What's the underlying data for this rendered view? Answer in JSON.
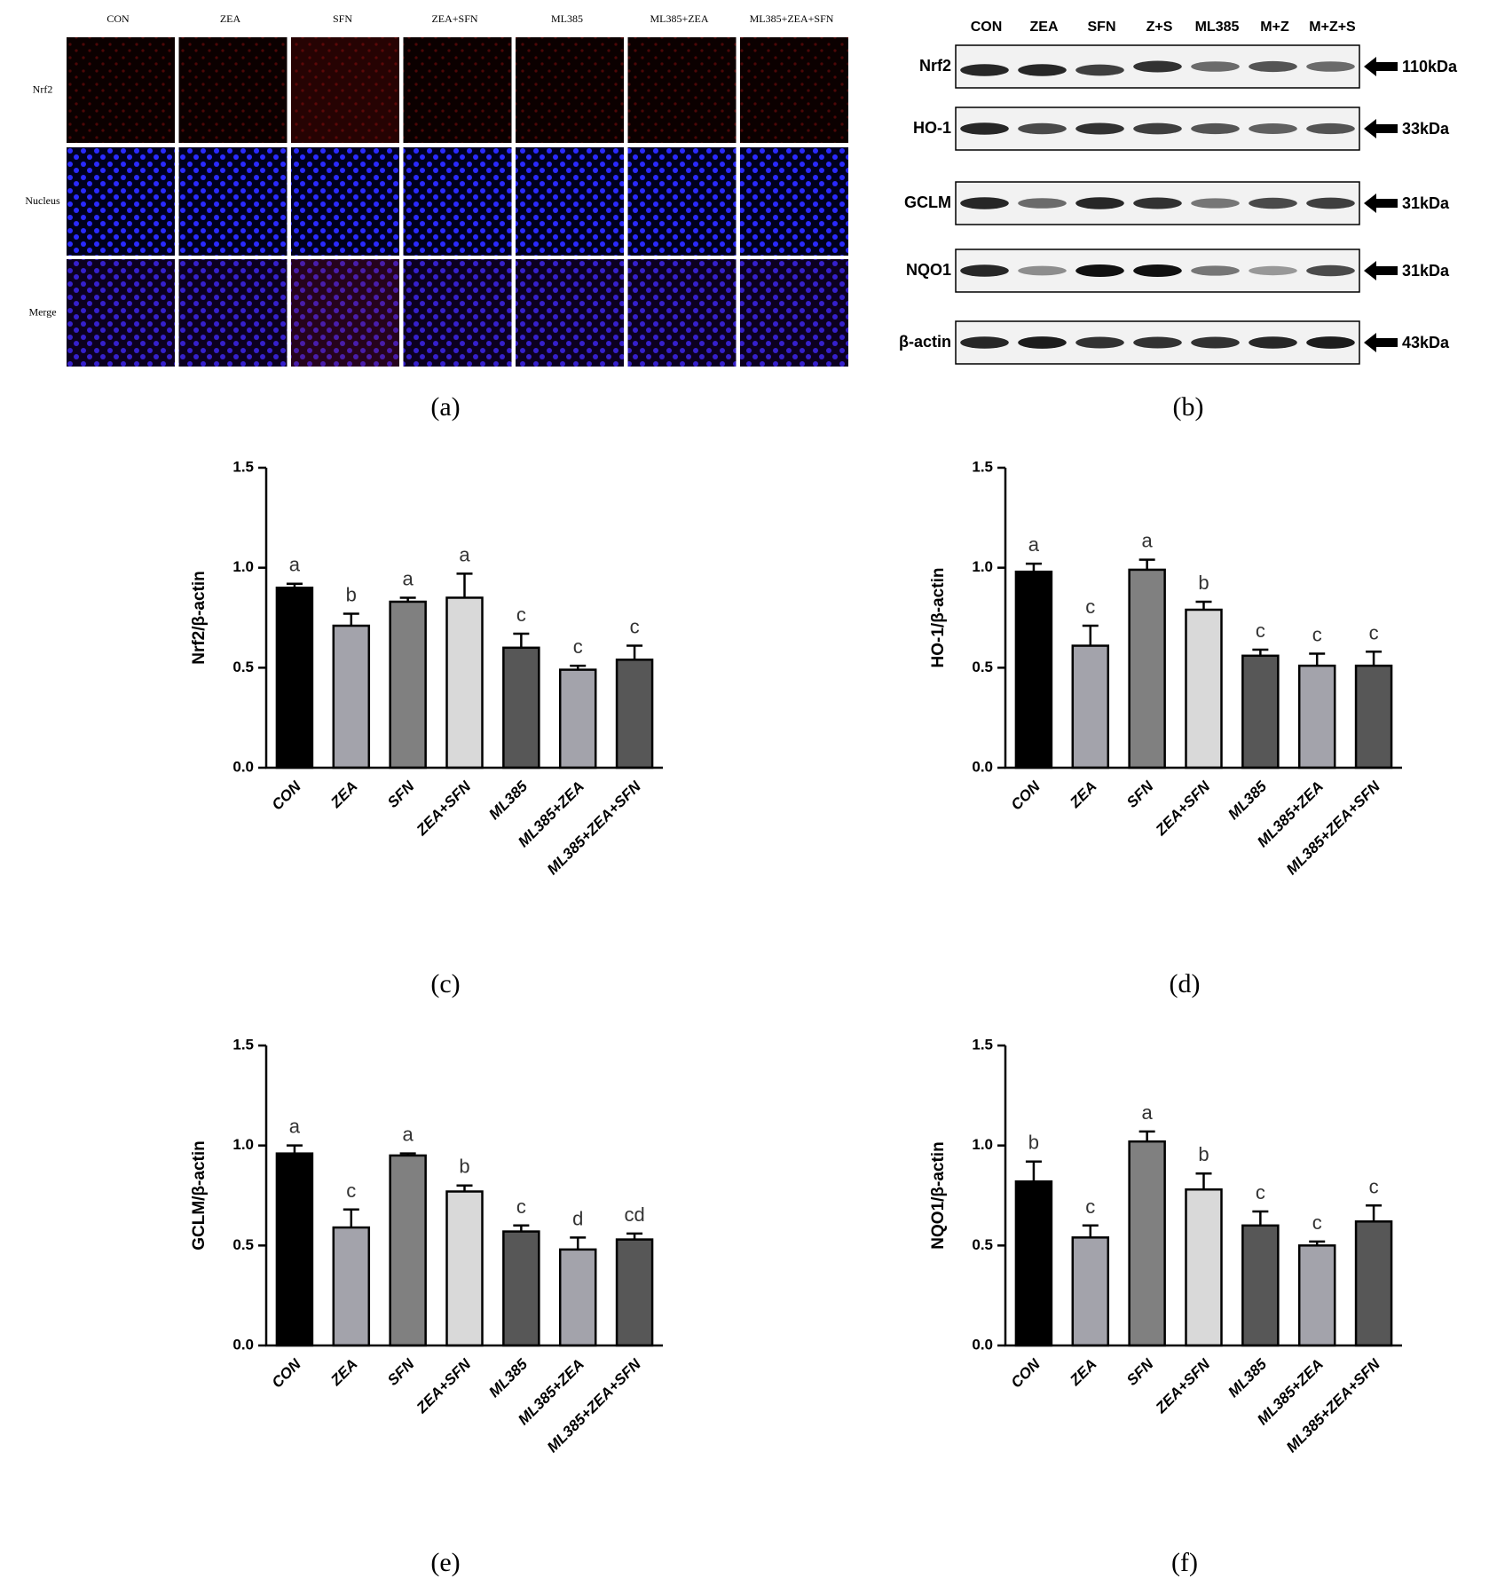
{
  "panel_a": {
    "label": "(a)",
    "columns": [
      "CON",
      "ZEA",
      "SFN",
      "ZEA+SFN",
      "ML385",
      "ML385+ZEA",
      "ML385+ZEA+SFN"
    ],
    "rows": [
      "Nrf2",
      "Nucleus",
      "Merge"
    ]
  },
  "panel_b": {
    "label": "(b)",
    "lanes": [
      "CON",
      "ZEA",
      "SFN",
      "Z+S",
      "ML385",
      "M+Z",
      "M+Z+S"
    ],
    "rows": [
      {
        "protein": "Nrf2",
        "size": "110kDa"
      },
      {
        "protein": "HO-1",
        "size": "33kDa"
      },
      {
        "protein": "GCLM",
        "size": "31kDa"
      },
      {
        "protein": "NQO1",
        "size": "31kDa"
      },
      {
        "protein": "β-actin",
        "size": "43kDa"
      }
    ]
  },
  "chart_data": [
    {
      "type": "bar",
      "label": "(c)",
      "y_label": "Nrf2/β-actin",
      "categories": [
        "CON",
        "ZEA",
        "SFN",
        "ZEA+SFN",
        "ML385",
        "ML385+ZEA",
        "ML385+ZEA+SFN"
      ],
      "values": [
        0.9,
        0.71,
        0.83,
        0.85,
        0.6,
        0.49,
        0.54
      ],
      "errors": [
        0.02,
        0.06,
        0.02,
        0.12,
        0.07,
        0.02,
        0.07
      ],
      "annotations": [
        "a",
        "b",
        "a",
        "a",
        "c",
        "c",
        "c"
      ],
      "colors": [
        "#000000",
        "#a3a3ab",
        "#808080",
        "#d9d9d9",
        "#575757",
        "#a3a3ab",
        "#575757"
      ],
      "ylim": [
        0,
        1.5
      ],
      "yticks": [
        {
          "value": 0,
          "label": "0.0"
        },
        0.5,
        {
          "value": 1,
          "label": "1.0"
        },
        1.5
      ]
    },
    {
      "type": "bar",
      "label": "(d)",
      "y_label": "HO-1/β-actin",
      "categories": [
        "CON",
        "ZEA",
        "SFN",
        "ZEA+SFN",
        "ML385",
        "ML385+ZEA",
        "ML385+ZEA+SFN"
      ],
      "values": [
        0.98,
        0.61,
        0.99,
        0.79,
        0.56,
        0.51,
        0.51
      ],
      "errors": [
        0.04,
        0.1,
        0.05,
        0.04,
        0.03,
        0.06,
        0.07
      ],
      "annotations": [
        "a",
        "c",
        "a",
        "b",
        "c",
        "c",
        "c"
      ],
      "colors": [
        "#000000",
        "#a3a3ab",
        "#808080",
        "#d9d9d9",
        "#575757",
        "#a3a3ab",
        "#575757"
      ],
      "ylim": [
        0,
        1.5
      ],
      "yticks": [
        {
          "value": 0,
          "label": "0.0"
        },
        0.5,
        {
          "value": 1,
          "label": "1.0"
        },
        1.5
      ]
    },
    {
      "type": "bar",
      "label": "(e)",
      "y_label": "GCLM/β-actin",
      "categories": [
        "CON",
        "ZEA",
        "SFN",
        "ZEA+SFN",
        "ML385",
        "ML385+ZEA",
        "ML385+ZEA+SFN"
      ],
      "values": [
        0.96,
        0.59,
        0.95,
        0.77,
        0.57,
        0.48,
        0.53
      ],
      "errors": [
        0.04,
        0.09,
        0.01,
        0.03,
        0.03,
        0.06,
        0.03
      ],
      "annotations": [
        "a",
        "c",
        "a",
        "b",
        "c",
        "d",
        "cd"
      ],
      "colors": [
        "#000000",
        "#a3a3ab",
        "#808080",
        "#d9d9d9",
        "#575757",
        "#a3a3ab",
        "#575757"
      ],
      "ylim": [
        0,
        1.5
      ],
      "yticks": [
        {
          "value": 0,
          "label": "0.0"
        },
        0.5,
        {
          "value": 1,
          "label": "1.0"
        },
        1.5
      ]
    },
    {
      "type": "bar",
      "label": "(f)",
      "y_label": "NQO1/β-actin",
      "categories": [
        "CON",
        "ZEA",
        "SFN",
        "ZEA+SFN",
        "ML385",
        "ML385+ZEA",
        "ML385+ZEA+SFN"
      ],
      "values": [
        0.82,
        0.54,
        1.02,
        0.78,
        0.6,
        0.5,
        0.62
      ],
      "errors": [
        0.1,
        0.06,
        0.05,
        0.08,
        0.07,
        0.02,
        0.08
      ],
      "annotations": [
        "b",
        "c",
        "a",
        "b",
        "c",
        "c",
        "c"
      ],
      "colors": [
        "#000000",
        "#a3a3ab",
        "#808080",
        "#d9d9d9",
        "#575757",
        "#a3a3ab",
        "#575757"
      ],
      "ylim": [
        0,
        1.5
      ],
      "yticks": [
        {
          "value": 0,
          "label": "0.0"
        },
        0.5,
        {
          "value": 1,
          "label": "1.0"
        },
        1.5
      ]
    }
  ]
}
